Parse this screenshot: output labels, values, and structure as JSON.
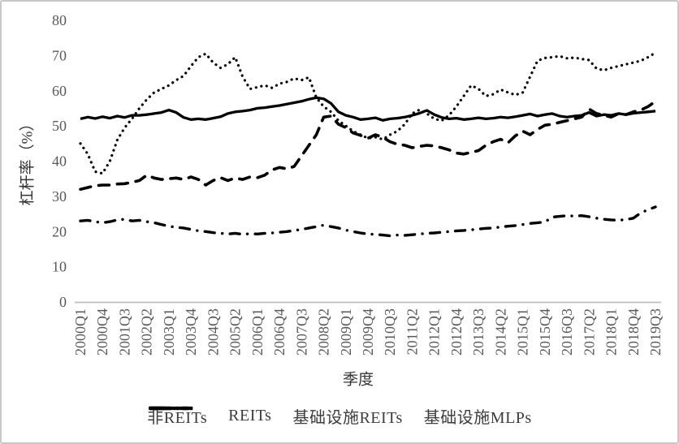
{
  "chart": {
    "y_axis_title": "杠杆率（%）",
    "x_axis_title": "季度",
    "line_color": "#000000",
    "axis_line_color": "#bfbfbf",
    "tick_label_color": "#595959"
  },
  "chart_data": {
    "type": "line",
    "title": "",
    "xlabel": "季度",
    "ylabel": "杠杆率（%）",
    "ylim": [
      0,
      80
    ],
    "yticks": [
      0,
      10,
      20,
      30,
      40,
      50,
      60,
      70,
      80
    ],
    "grid": false,
    "legend_position": "bottom",
    "x_start": "2000Q1",
    "x_end": "2019Q3",
    "x_frequency": "quarterly",
    "x_tick_every": 3,
    "x_tick_labels": [
      "2000Q1",
      "2000Q4",
      "2001Q3",
      "2002Q2",
      "2003Q1",
      "2003Q4",
      "2004Q3",
      "2005Q2",
      "2006Q1",
      "2006Q4",
      "2007Q3",
      "2008Q2",
      "2009Q1",
      "2009Q4",
      "2010Q3",
      "2011Q2",
      "2012Q1",
      "2012Q4",
      "2013Q3",
      "2014Q2",
      "2015Q1",
      "2015Q4",
      "2016Q3",
      "2017Q2",
      "2018Q1",
      "2018Q4",
      "2019Q3"
    ],
    "series": [
      {
        "name": "非REITs",
        "style": "dashdot",
        "values": [
          23,
          23.2,
          22.8,
          22.5,
          22.8,
          23.3,
          23.5,
          23,
          23.2,
          22.8,
          22.5,
          22,
          21.5,
          21.2,
          21,
          20.6,
          20.2,
          20,
          19.7,
          19.5,
          19.3,
          19.5,
          19.2,
          19.4,
          19.3,
          19.5,
          19.6,
          19.8,
          20,
          20.3,
          20.6,
          21,
          21.4,
          21.8,
          21.4,
          21,
          20.4,
          20,
          19.6,
          19.3,
          19.2,
          19,
          18.8,
          19,
          18.9,
          19.1,
          19.3,
          19.5,
          19.6,
          19.8,
          20,
          20.2,
          20.3,
          20.5,
          20.7,
          20.9,
          21,
          21.3,
          21.5,
          21.7,
          22,
          22.3,
          22.5,
          22.7,
          24.1,
          24.3,
          24.5,
          24.4,
          24.5,
          24.2,
          23.8,
          23.5,
          23.3,
          23.2,
          23.4,
          23.8,
          25.3,
          26.2,
          27
        ]
      },
      {
        "name": "REITs",
        "style": "solid",
        "values": [
          52,
          52.5,
          52.1,
          52.6,
          52.2,
          52.8,
          52.4,
          53,
          53,
          53.2,
          53.5,
          53.8,
          54.5,
          53.8,
          52.4,
          51.8,
          52,
          51.8,
          52.2,
          52.6,
          53.5,
          54,
          54.2,
          54.5,
          55,
          55.2,
          55.5,
          55.8,
          56.2,
          56.6,
          57,
          57.6,
          58,
          57.7,
          56.4,
          54,
          53,
          52.5,
          51.8,
          52,
          52.3,
          51.6,
          52,
          52.2,
          52.5,
          53,
          53.6,
          54.4,
          53.2,
          52.4,
          52,
          52.2,
          51.8,
          52,
          52.3,
          52,
          52.2,
          52.5,
          52.3,
          52.6,
          53,
          53.4,
          52.8,
          53.2,
          53.5,
          52.8,
          52.5,
          52.8,
          53,
          53.8,
          52.8,
          53.2,
          53,
          53.5,
          53.2,
          53.6,
          53.8,
          54,
          54.2
        ]
      },
      {
        "name": "基础设施REITs",
        "style": "dotted",
        "values": [
          45,
          42,
          37,
          36.5,
          40,
          46,
          49.5,
          52,
          55,
          57.5,
          59.5,
          60.5,
          61.5,
          63,
          64.2,
          67,
          69.5,
          70.5,
          68,
          66.5,
          67.5,
          69.5,
          64,
          60.5,
          61,
          61.5,
          60.8,
          62,
          62.5,
          63.5,
          63,
          63.8,
          58,
          55.5,
          54,
          51.5,
          50,
          48.5,
          47.5,
          46.5,
          46.8,
          46.2,
          47.5,
          48.5,
          50.5,
          53.5,
          54.6,
          53.5,
          52,
          51.5,
          53,
          55.5,
          58.5,
          61.5,
          60.5,
          58.5,
          59,
          60.3,
          59.5,
          58.8,
          59.5,
          64,
          68.5,
          69.3,
          69.5,
          69.8,
          69.2,
          69.4,
          69,
          68.7,
          66.3,
          65.8,
          66.5,
          67,
          67.5,
          68,
          68.5,
          69.5,
          70.8
        ]
      },
      {
        "name": "基础设施MLPs",
        "style": "dash",
        "values": [
          32,
          32.5,
          33,
          33.2,
          33.2,
          33.5,
          33.6,
          34,
          34.5,
          36,
          35.2,
          34.8,
          35,
          35.2,
          34.8,
          35.5,
          34.8,
          33.2,
          34.5,
          35.3,
          34.5,
          35.2,
          34.8,
          35.5,
          35.3,
          36,
          37.5,
          38.2,
          37.8,
          38.5,
          41.5,
          44.5,
          47.5,
          52.5,
          52.8,
          50.5,
          49.5,
          48,
          47.3,
          46.5,
          47.5,
          46.8,
          45.5,
          44.8,
          44.5,
          43.8,
          44.2,
          44.5,
          44.3,
          43.8,
          43.2,
          42.3,
          42,
          42.5,
          43,
          44.5,
          45.5,
          46.2,
          45.2,
          47.2,
          48.5,
          47.5,
          49,
          50.2,
          50.5,
          51,
          51.5,
          52,
          52.5,
          54.8,
          53.5,
          53,
          52.5,
          53.5,
          53.2,
          54,
          54.5,
          55.5,
          57
        ]
      }
    ]
  }
}
